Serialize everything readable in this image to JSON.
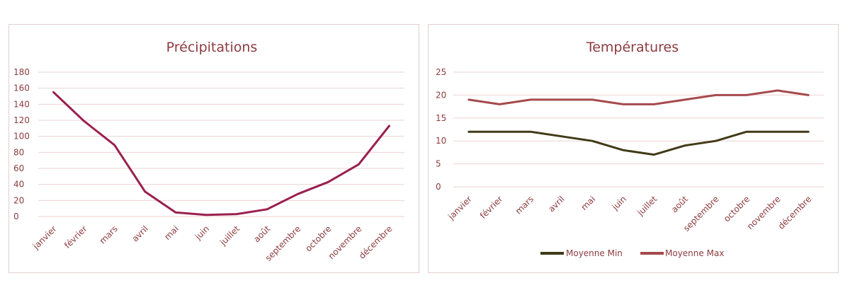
{
  "chart_data": [
    {
      "type": "line",
      "title": "Précipitations",
      "xlabel": "",
      "ylabel": "",
      "categories": [
        "janvier",
        "février",
        "mars",
        "avril",
        "mai",
        "juin",
        "juillet",
        "août",
        "septembre",
        "octobre",
        "novembre",
        "décembre"
      ],
      "ylim": [
        0,
        180
      ],
      "yticks": [
        0,
        20,
        40,
        60,
        80,
        100,
        120,
        140,
        160,
        180
      ],
      "grid": true,
      "legend": "none",
      "series": [
        {
          "values": [
            155,
            119,
            89,
            31,
            5,
            2,
            3,
            9,
            28,
            43,
            65,
            113
          ],
          "color": "#99204f"
        }
      ]
    },
    {
      "type": "line",
      "title": "Températures",
      "xlabel": "",
      "ylabel": "",
      "categories": [
        "janvier",
        "février",
        "mars",
        "avril",
        "mai",
        "juin",
        "juillet",
        "août",
        "septembre",
        "octobre",
        "novembre",
        "décembre"
      ],
      "ylim": [
        0,
        25
      ],
      "yticks": [
        0,
        5,
        10,
        15,
        20,
        25
      ],
      "grid": true,
      "legend": "bottom",
      "series": [
        {
          "name": "Moyenne Min",
          "values": [
            12,
            12,
            12,
            11,
            10,
            8,
            7,
            9,
            10,
            12,
            12,
            12
          ],
          "color": "#403a17"
        },
        {
          "name": "Moyenne Max",
          "values": [
            19,
            18,
            19,
            19,
            19,
            18,
            18,
            19,
            20,
            20,
            21,
            20
          ],
          "color": "#a6494d"
        }
      ]
    }
  ]
}
